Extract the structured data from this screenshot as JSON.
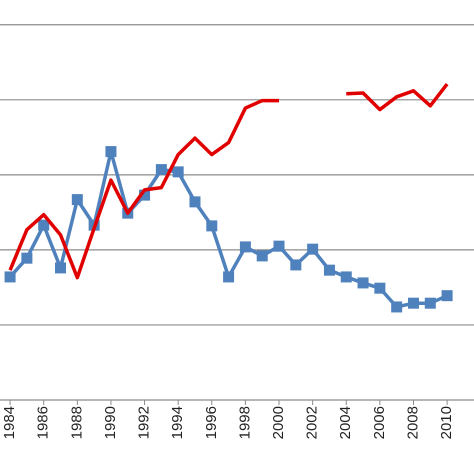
{
  "chart_data": {
    "type": "line",
    "x": [
      1984,
      1985,
      1986,
      1987,
      1988,
      1989,
      1990,
      1991,
      1992,
      1993,
      1994,
      1995,
      1996,
      1997,
      1998,
      1999,
      2000,
      2001,
      2002,
      2003,
      2004,
      2005,
      2006,
      2007,
      2008,
      2009,
      2010
    ],
    "series": [
      {
        "color": "#4f81bd",
        "marker": "square",
        "values": [
          1.64,
          1.89,
          2.33,
          1.76,
          2.67,
          2.33,
          3.31,
          2.49,
          2.73,
          3.07,
          3.04,
          2.64,
          2.32,
          1.64,
          2.04,
          1.92,
          2.05,
          1.8,
          2.01,
          1.73,
          1.64,
          1.56,
          1.49,
          1.24,
          1.29,
          1.29,
          1.39
        ]
      },
      {
        "color": "#e00000",
        "marker": "none",
        "values": [
          1.73,
          2.27,
          2.47,
          2.2,
          1.63,
          2.29,
          2.93,
          2.49,
          2.8,
          2.83,
          3.27,
          3.49,
          3.27,
          3.43,
          3.89,
          3.99,
          3.99,
          null,
          null,
          null,
          4.08,
          4.09,
          3.87,
          4.04,
          4.12,
          3.92,
          4.21
        ]
      }
    ],
    "xlim": [
      1983.4,
      2011.6
    ],
    "xticks": [
      1984,
      1986,
      1988,
      1990,
      1992,
      1994,
      1996,
      1998,
      2000,
      2002,
      2004,
      2006,
      2008,
      2010
    ],
    "ylim": [
      0,
      5.33
    ],
    "yticks": [
      1,
      2,
      3,
      4,
      5
    ],
    "grid": true
  }
}
